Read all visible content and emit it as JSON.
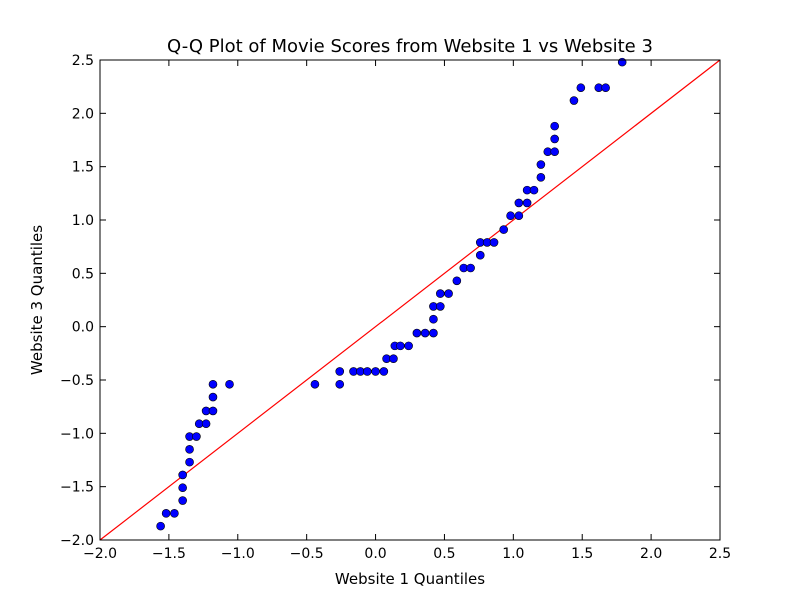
{
  "chart_data": {
    "type": "scatter",
    "title": "Q-Q Plot of Movie Scores from Website 1 vs Website 3",
    "xlabel": "Website 1 Quantiles",
    "ylabel": "Website 3 Quantiles",
    "xlim": [
      -2.0,
      2.5
    ],
    "ylim": [
      -2.0,
      2.5
    ],
    "xticks": [
      -2.0,
      -1.5,
      -1.0,
      -0.5,
      0.0,
      0.5,
      1.0,
      1.5,
      2.0,
      2.5
    ],
    "yticks": [
      -2.0,
      -1.5,
      -1.0,
      -0.5,
      0.0,
      0.5,
      1.0,
      1.5,
      2.0,
      2.5
    ],
    "xtick_labels": [
      "−2.0",
      "−1.5",
      "−1.0",
      "−0.5",
      "0.0",
      "0.5",
      "1.0",
      "1.5",
      "2.0",
      "2.5"
    ],
    "ytick_labels": [
      "−2.0",
      "−1.5",
      "−1.0",
      "−0.5",
      "0.0",
      "0.5",
      "1.0",
      "1.5",
      "2.0",
      "2.5"
    ],
    "grid": false,
    "marker_color": "#0000ff",
    "line_color": "#ff0000",
    "reference_line": {
      "x": [
        -2.0,
        2.5
      ],
      "y": [
        -2.0,
        2.5
      ]
    },
    "points": [
      [
        -1.56,
        -1.87
      ],
      [
        -1.52,
        -1.75
      ],
      [
        -1.46,
        -1.75
      ],
      [
        -1.4,
        -1.63
      ],
      [
        -1.4,
        -1.51
      ],
      [
        -1.4,
        -1.39
      ],
      [
        -1.35,
        -1.27
      ],
      [
        -1.35,
        -1.15
      ],
      [
        -1.35,
        -1.03
      ],
      [
        -1.3,
        -1.03
      ],
      [
        -1.28,
        -0.91
      ],
      [
        -1.23,
        -0.91
      ],
      [
        -1.23,
        -0.79
      ],
      [
        -1.18,
        -0.79
      ],
      [
        -1.18,
        -0.66
      ],
      [
        -1.18,
        -0.54
      ],
      [
        -1.06,
        -0.54
      ],
      [
        -0.44,
        -0.54
      ],
      [
        -0.26,
        -0.54
      ],
      [
        -0.26,
        -0.42
      ],
      [
        -0.16,
        -0.42
      ],
      [
        -0.11,
        -0.42
      ],
      [
        -0.06,
        -0.42
      ],
      [
        0.0,
        -0.42
      ],
      [
        0.06,
        -0.42
      ],
      [
        0.08,
        -0.3
      ],
      [
        0.13,
        -0.3
      ],
      [
        0.14,
        -0.18
      ],
      [
        0.18,
        -0.18
      ],
      [
        0.24,
        -0.18
      ],
      [
        0.3,
        -0.06
      ],
      [
        0.36,
        -0.06
      ],
      [
        0.42,
        -0.06
      ],
      [
        0.42,
        0.07
      ],
      [
        0.42,
        0.19
      ],
      [
        0.47,
        0.19
      ],
      [
        0.47,
        0.31
      ],
      [
        0.53,
        0.31
      ],
      [
        0.59,
        0.43
      ],
      [
        0.64,
        0.55
      ],
      [
        0.69,
        0.55
      ],
      [
        0.76,
        0.67
      ],
      [
        0.76,
        0.79
      ],
      [
        0.81,
        0.79
      ],
      [
        0.86,
        0.79
      ],
      [
        0.93,
        0.91
      ],
      [
        0.98,
        1.04
      ],
      [
        1.04,
        1.04
      ],
      [
        1.04,
        1.16
      ],
      [
        1.1,
        1.16
      ],
      [
        1.1,
        1.28
      ],
      [
        1.15,
        1.28
      ],
      [
        1.2,
        1.4
      ],
      [
        1.2,
        1.52
      ],
      [
        1.25,
        1.64
      ],
      [
        1.3,
        1.64
      ],
      [
        1.3,
        1.76
      ],
      [
        1.3,
        1.88
      ],
      [
        1.44,
        2.12
      ],
      [
        1.49,
        2.24
      ],
      [
        1.62,
        2.24
      ],
      [
        1.67,
        2.24
      ],
      [
        1.79,
        2.48
      ]
    ]
  }
}
